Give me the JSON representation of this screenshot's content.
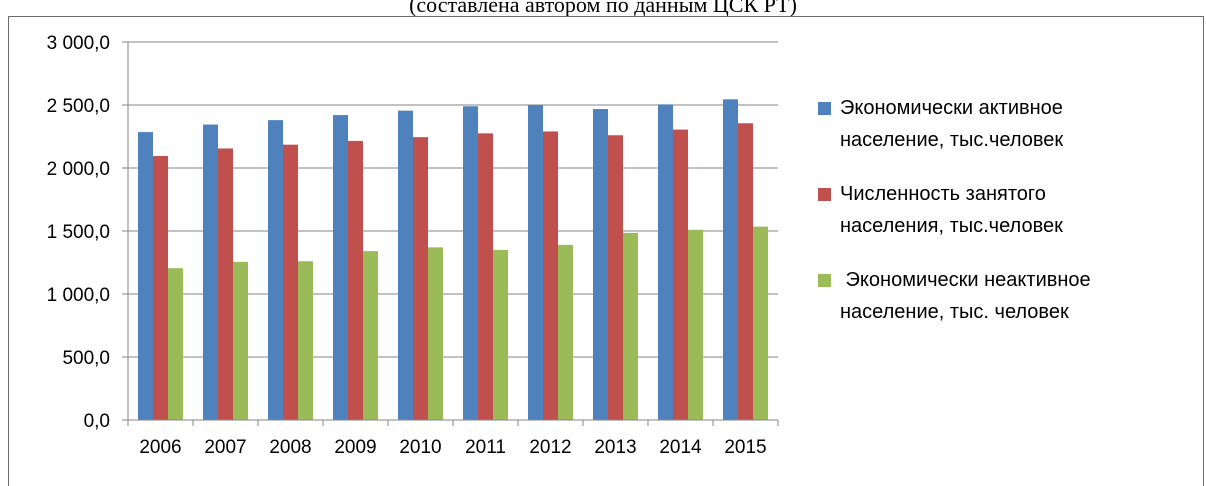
{
  "caption": "(составлена автором по данным ЦСК РТ)",
  "colors": {
    "axis": "#868686",
    "frame": "#6b6b6b"
  },
  "chart_data": {
    "type": "bar",
    "categories": [
      "2006",
      "2007",
      "2008",
      "2009",
      "2010",
      "2011",
      "2012",
      "2013",
      "2014",
      "2015"
    ],
    "y_ticks": [
      "0,0",
      "500,0",
      "1 000,0",
      "1 500,0",
      "2 000,0",
      "2 500,0",
      "3 000,0"
    ],
    "ylim": [
      0,
      3000
    ],
    "grid": true,
    "legend_position": "right",
    "series": [
      {
        "name": "Экономически активное население, тыс.человек",
        "legend_lines": [
          "Экономически активное",
          "население, тыс.человек"
        ],
        "color": "#4f81bd",
        "values": [
          2285,
          2345,
          2380,
          2420,
          2455,
          2490,
          2500,
          2468,
          2505,
          2545
        ]
      },
      {
        "name": "Численность занятого населения, тыс.человек",
        "legend_lines": [
          "Численность занятого",
          "населения, тыс.человек"
        ],
        "color": "#c0504d",
        "values": [
          2095,
          2155,
          2185,
          2215,
          2245,
          2275,
          2290,
          2260,
          2305,
          2355
        ]
      },
      {
        "name": "Экономически неактивное население, тыс. человек",
        "legend_lines": [
          " Экономически неактивное",
          "население, тыс. человек"
        ],
        "color": "#9bbb59",
        "values": [
          1205,
          1255,
          1260,
          1340,
          1370,
          1350,
          1390,
          1485,
          1510,
          1535
        ]
      }
    ]
  }
}
